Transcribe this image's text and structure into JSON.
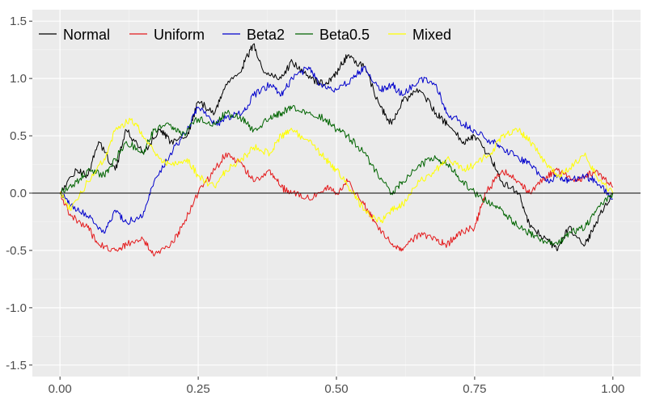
{
  "chart_data": {
    "type": "line",
    "title": "",
    "xlabel": "",
    "ylabel": "",
    "xlim": [
      -0.05,
      1.05
    ],
    "ylim": [
      -1.6,
      1.6
    ],
    "x_ticks": [
      0.0,
      0.25,
      0.5,
      0.75,
      1.0
    ],
    "x_tick_labels": [
      "0.00",
      "0.25",
      "0.50",
      "0.75",
      "1.00"
    ],
    "y_ticks": [
      -1.5,
      -1.0,
      -0.5,
      0.0,
      0.5,
      1.0,
      1.5
    ],
    "y_tick_labels": [
      "-1.5",
      "-1.0",
      "-0.5",
      "0.0",
      "0.5",
      "1.0",
      "1.5"
    ],
    "background": "#ebebeb",
    "grid": true,
    "reference_line": {
      "y": 0.0,
      "color": "#000000"
    },
    "legend": {
      "placement": "top-left",
      "orientation": "horizontal"
    },
    "series": [
      {
        "name": "Normal",
        "color": "#000000",
        "x": [
          0.0,
          0.03,
          0.05,
          0.07,
          0.1,
          0.12,
          0.15,
          0.18,
          0.2,
          0.23,
          0.25,
          0.28,
          0.3,
          0.33,
          0.35,
          0.37,
          0.4,
          0.42,
          0.45,
          0.48,
          0.5,
          0.52,
          0.55,
          0.58,
          0.6,
          0.62,
          0.65,
          0.68,
          0.7,
          0.73,
          0.75,
          0.78,
          0.8,
          0.83,
          0.85,
          0.88,
          0.9,
          0.92,
          0.95,
          0.97,
          1.0
        ],
        "y": [
          0.0,
          0.2,
          0.15,
          0.45,
          0.2,
          0.55,
          0.35,
          0.55,
          0.45,
          0.5,
          0.8,
          0.7,
          0.95,
          1.1,
          1.3,
          1.05,
          1.0,
          1.15,
          1.0,
          0.95,
          1.05,
          1.2,
          1.1,
          0.75,
          0.6,
          0.8,
          0.9,
          0.7,
          0.6,
          0.45,
          0.5,
          0.3,
          0.1,
          0.0,
          -0.3,
          -0.4,
          -0.5,
          -0.3,
          -0.45,
          -0.25,
          0.0
        ]
      },
      {
        "name": "Uniform",
        "color": "#e41a1c",
        "x": [
          0.0,
          0.02,
          0.05,
          0.07,
          0.1,
          0.12,
          0.15,
          0.17,
          0.2,
          0.22,
          0.25,
          0.28,
          0.3,
          0.33,
          0.35,
          0.38,
          0.4,
          0.42,
          0.45,
          0.48,
          0.5,
          0.52,
          0.55,
          0.57,
          0.6,
          0.62,
          0.65,
          0.68,
          0.7,
          0.72,
          0.75,
          0.77,
          0.8,
          0.83,
          0.85,
          0.88,
          0.9,
          0.93,
          0.95,
          0.97,
          1.0
        ],
        "y": [
          0.0,
          -0.2,
          -0.3,
          -0.45,
          -0.5,
          -0.45,
          -0.4,
          -0.55,
          -0.45,
          -0.3,
          0.0,
          0.2,
          0.35,
          0.25,
          0.1,
          0.2,
          0.05,
          0.0,
          -0.05,
          0.05,
          0.0,
          0.1,
          -0.1,
          -0.25,
          -0.45,
          -0.5,
          -0.35,
          -0.4,
          -0.45,
          -0.35,
          -0.3,
          0.0,
          0.2,
          0.1,
          0.0,
          0.15,
          0.2,
          0.1,
          0.15,
          0.2,
          0.05
        ]
      },
      {
        "name": "Beta2",
        "color": "#0000cc",
        "x": [
          0.0,
          0.02,
          0.05,
          0.08,
          0.1,
          0.12,
          0.15,
          0.17,
          0.2,
          0.23,
          0.25,
          0.28,
          0.3,
          0.33,
          0.35,
          0.38,
          0.4,
          0.42,
          0.45,
          0.47,
          0.5,
          0.53,
          0.55,
          0.58,
          0.6,
          0.62,
          0.65,
          0.68,
          0.7,
          0.73,
          0.75,
          0.78,
          0.8,
          0.83,
          0.85,
          0.88,
          0.9,
          0.92,
          0.95,
          0.97,
          1.0
        ],
        "y": [
          0.0,
          -0.1,
          -0.2,
          -0.35,
          -0.15,
          -0.25,
          -0.2,
          0.1,
          0.35,
          0.55,
          0.75,
          0.6,
          0.65,
          0.7,
          0.85,
          0.95,
          0.85,
          1.0,
          1.1,
          0.95,
          0.9,
          1.0,
          1.1,
          0.9,
          0.95,
          0.85,
          1.0,
          0.95,
          0.7,
          0.6,
          0.55,
          0.45,
          0.4,
          0.3,
          0.25,
          0.1,
          0.15,
          0.1,
          0.15,
          0.1,
          -0.05
        ]
      },
      {
        "name": "Beta0.5",
        "color": "#006400",
        "x": [
          0.0,
          0.03,
          0.05,
          0.08,
          0.1,
          0.12,
          0.15,
          0.17,
          0.2,
          0.22,
          0.25,
          0.28,
          0.3,
          0.33,
          0.35,
          0.38,
          0.4,
          0.42,
          0.45,
          0.48,
          0.5,
          0.52,
          0.55,
          0.57,
          0.6,
          0.62,
          0.65,
          0.68,
          0.7,
          0.72,
          0.75,
          0.78,
          0.8,
          0.82,
          0.85,
          0.87,
          0.9,
          0.92,
          0.95,
          0.97,
          1.0
        ],
        "y": [
          0.0,
          0.1,
          0.2,
          0.15,
          0.3,
          0.45,
          0.35,
          0.55,
          0.6,
          0.5,
          0.65,
          0.6,
          0.7,
          0.65,
          0.55,
          0.65,
          0.7,
          0.75,
          0.7,
          0.65,
          0.55,
          0.5,
          0.35,
          0.2,
          0.0,
          0.1,
          0.25,
          0.3,
          0.25,
          0.15,
          0.0,
          -0.1,
          -0.15,
          -0.25,
          -0.35,
          -0.4,
          -0.45,
          -0.35,
          -0.3,
          -0.15,
          0.0
        ]
      },
      {
        "name": "Mixed",
        "color": "#ffff00",
        "x": [
          0.0,
          0.02,
          0.05,
          0.08,
          0.1,
          0.13,
          0.15,
          0.18,
          0.2,
          0.23,
          0.25,
          0.28,
          0.3,
          0.33,
          0.35,
          0.38,
          0.4,
          0.42,
          0.45,
          0.48,
          0.5,
          0.53,
          0.55,
          0.58,
          0.6,
          0.62,
          0.65,
          0.68,
          0.7,
          0.73,
          0.75,
          0.78,
          0.8,
          0.83,
          0.85,
          0.88,
          0.9,
          0.92,
          0.95,
          0.97,
          1.0
        ],
        "y": [
          0.0,
          -0.15,
          0.1,
          0.3,
          0.55,
          0.65,
          0.5,
          0.3,
          0.25,
          0.3,
          0.15,
          0.05,
          0.2,
          0.3,
          0.4,
          0.35,
          0.5,
          0.55,
          0.45,
          0.3,
          0.2,
          0.0,
          -0.15,
          -0.25,
          -0.15,
          -0.1,
          0.1,
          0.2,
          0.3,
          0.2,
          0.25,
          0.35,
          0.5,
          0.55,
          0.45,
          0.25,
          0.15,
          0.2,
          0.35,
          0.15,
          0.0
        ]
      }
    ]
  }
}
